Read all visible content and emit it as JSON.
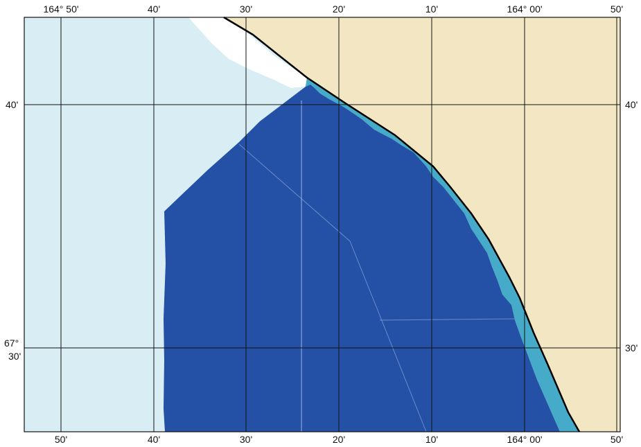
{
  "colors": {
    "land": "#f3e6c3",
    "shallow_water": "#d8edf4",
    "deep_area": "#2451a6",
    "nearshore_band": "#46abc8",
    "coastline": "#000000",
    "grid": "#111111",
    "unmapped": "#ffffff"
  },
  "labels": {
    "top": [
      "164° 50'",
      "40'",
      "30'",
      "20'",
      "10'",
      "164° 00'",
      "50'"
    ],
    "bottom": [
      "50'",
      "40'",
      "30'",
      "20'",
      "10'",
      "164° 00'",
      "50'"
    ],
    "left_upper": "40'",
    "left_lower_deg": "67°",
    "left_lower_min": "30'",
    "right_upper": "40'",
    "right_lower": "30'"
  }
}
